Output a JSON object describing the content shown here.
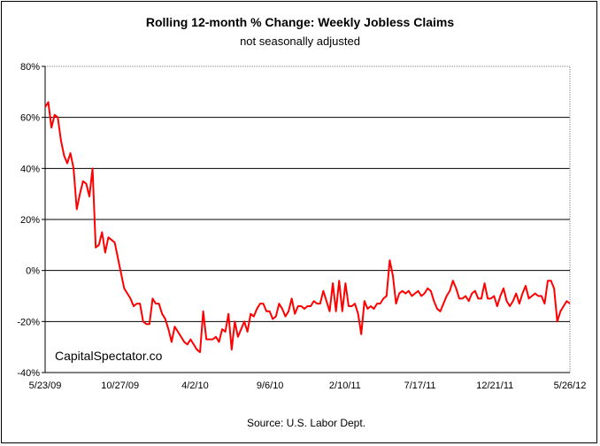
{
  "chart_data": {
    "type": "line",
    "title": "Rolling 12-month %  Change: Weekly Jobless Claims",
    "subtitle": "not seasonally adjusted",
    "source": "Source: U.S. Labor Dept.",
    "watermark": "CapitalSpectator.co",
    "y_unit": "percent",
    "ylim": [
      -40,
      80
    ],
    "y_ticks": [
      80,
      60,
      40,
      20,
      0,
      -20,
      -40
    ],
    "y_tick_labels": [
      "80%",
      "60%",
      "40%",
      "20%",
      "0%",
      "-20%",
      "-40%"
    ],
    "x_tick_labels": [
      "5/23/09",
      "10/27/09",
      "4/2/10",
      "9/6/10",
      "2/10/11",
      "7/17/11",
      "12/21/11",
      "5/26/12"
    ],
    "grid": "horizontal",
    "line_color": "#ff0000",
    "series": [
      {
        "values": [
          64,
          66,
          56,
          61,
          60,
          51,
          45,
          42,
          46,
          40,
          24,
          30,
          35,
          34,
          29,
          40,
          9,
          10,
          15,
          7,
          13,
          12,
          11,
          5,
          -1,
          -7,
          -9,
          -11,
          -14,
          -13,
          -13,
          -20,
          -21,
          -21,
          -11,
          -13,
          -13,
          -17,
          -19,
          -23,
          -28,
          -22,
          -24,
          -26,
          -28,
          -29,
          -27,
          -29,
          -31,
          -32,
          -16,
          -27,
          -27,
          -27,
          -26,
          -28,
          -23,
          -24,
          -17,
          -31,
          -20,
          -26,
          -23,
          -20,
          -24,
          -17,
          -18,
          -15,
          -13,
          -13,
          -16,
          -16,
          -19,
          -18,
          -13,
          -15,
          -18,
          -16,
          -11,
          -17,
          -14,
          -14,
          -15,
          -14,
          -14,
          -12,
          -13,
          -13,
          -8,
          -12,
          -16,
          -5,
          -16,
          -4,
          -16,
          -5,
          -14,
          -14,
          -13,
          -17,
          -25,
          -12,
          -15,
          -14,
          -15,
          -13,
          -13,
          -11,
          -10,
          4,
          -2,
          -13,
          -9,
          -8,
          -9,
          -8,
          -10,
          -9,
          -8,
          -10,
          -9,
          -7,
          -8,
          -12,
          -15,
          -16,
          -13,
          -10,
          -8,
          -4,
          -7,
          -11,
          -11,
          -10,
          -12,
          -9,
          -8,
          -11,
          -11,
          -5,
          -11,
          -11,
          -10,
          -14,
          -10,
          -7,
          -12,
          -14,
          -12,
          -9,
          -13,
          -9,
          -6,
          -11,
          -10,
          -9,
          -10,
          -10,
          -13,
          -4,
          -4,
          -7,
          -20,
          -16,
          -14,
          -12,
          -13
        ]
      }
    ]
  }
}
